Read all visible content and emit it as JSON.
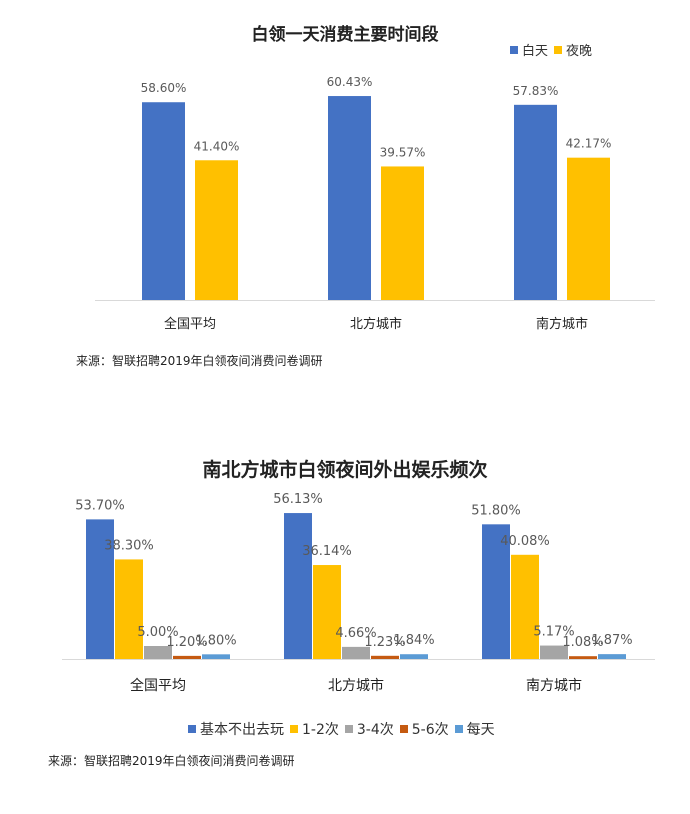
{
  "chart_data": [
    {
      "type": "bar",
      "title": "白领一天消费主要时间段",
      "categories": [
        "全国平均",
        "北方城市",
        "南方城市"
      ],
      "series": [
        {
          "name": "白天",
          "color": "#4472C4",
          "values": [
            58.6,
            60.43,
            57.83
          ],
          "labels": [
            "58.60%",
            "60.43%",
            "57.83%"
          ]
        },
        {
          "name": "夜晚",
          "color": "#FFC000",
          "values": [
            41.4,
            39.57,
            42.17
          ],
          "labels": [
            "41.40%",
            "39.57%",
            "42.17%"
          ]
        }
      ],
      "ylim": [
        0,
        100
      ],
      "legend": "top-right",
      "source": "来源：智联招聘2019年白领夜间消费问卷调研"
    },
    {
      "type": "bar",
      "title": "南北方城市白领夜间外出娱乐频次",
      "categories": [
        "全国平均",
        "北方城市",
        "南方城市"
      ],
      "series": [
        {
          "name": "基本不出去玩",
          "color": "#4472C4",
          "values": [
            53.7,
            56.13,
            51.8
          ],
          "labels": [
            "53.70%",
            "56.13%",
            "51.80%"
          ]
        },
        {
          "name": "1-2次",
          "color": "#FFC000",
          "values": [
            38.3,
            36.14,
            40.08
          ],
          "labels": [
            "38.30%",
            "36.14%",
            "40.08%"
          ]
        },
        {
          "name": "3-4次",
          "color": "#A5A5A5",
          "values": [
            5.0,
            4.66,
            5.17
          ],
          "labels": [
            "5.00%",
            "4.66%",
            "5.17%"
          ]
        },
        {
          "name": "5-6次",
          "color": "#C55A11",
          "values": [
            1.2,
            1.23,
            1.08
          ],
          "labels": [
            "1.20%",
            "1.23%",
            "1.08%"
          ]
        },
        {
          "name": "每天",
          "color": "#5B9BD5",
          "values": [
            1.8,
            1.84,
            1.87
          ],
          "labels": [
            "1.80%",
            "1.84%",
            "1.87%"
          ]
        }
      ],
      "ylim": [
        0,
        100
      ],
      "legend": "bottom",
      "source": "来源：智联招聘2019年白领夜间消费问卷调研"
    }
  ]
}
